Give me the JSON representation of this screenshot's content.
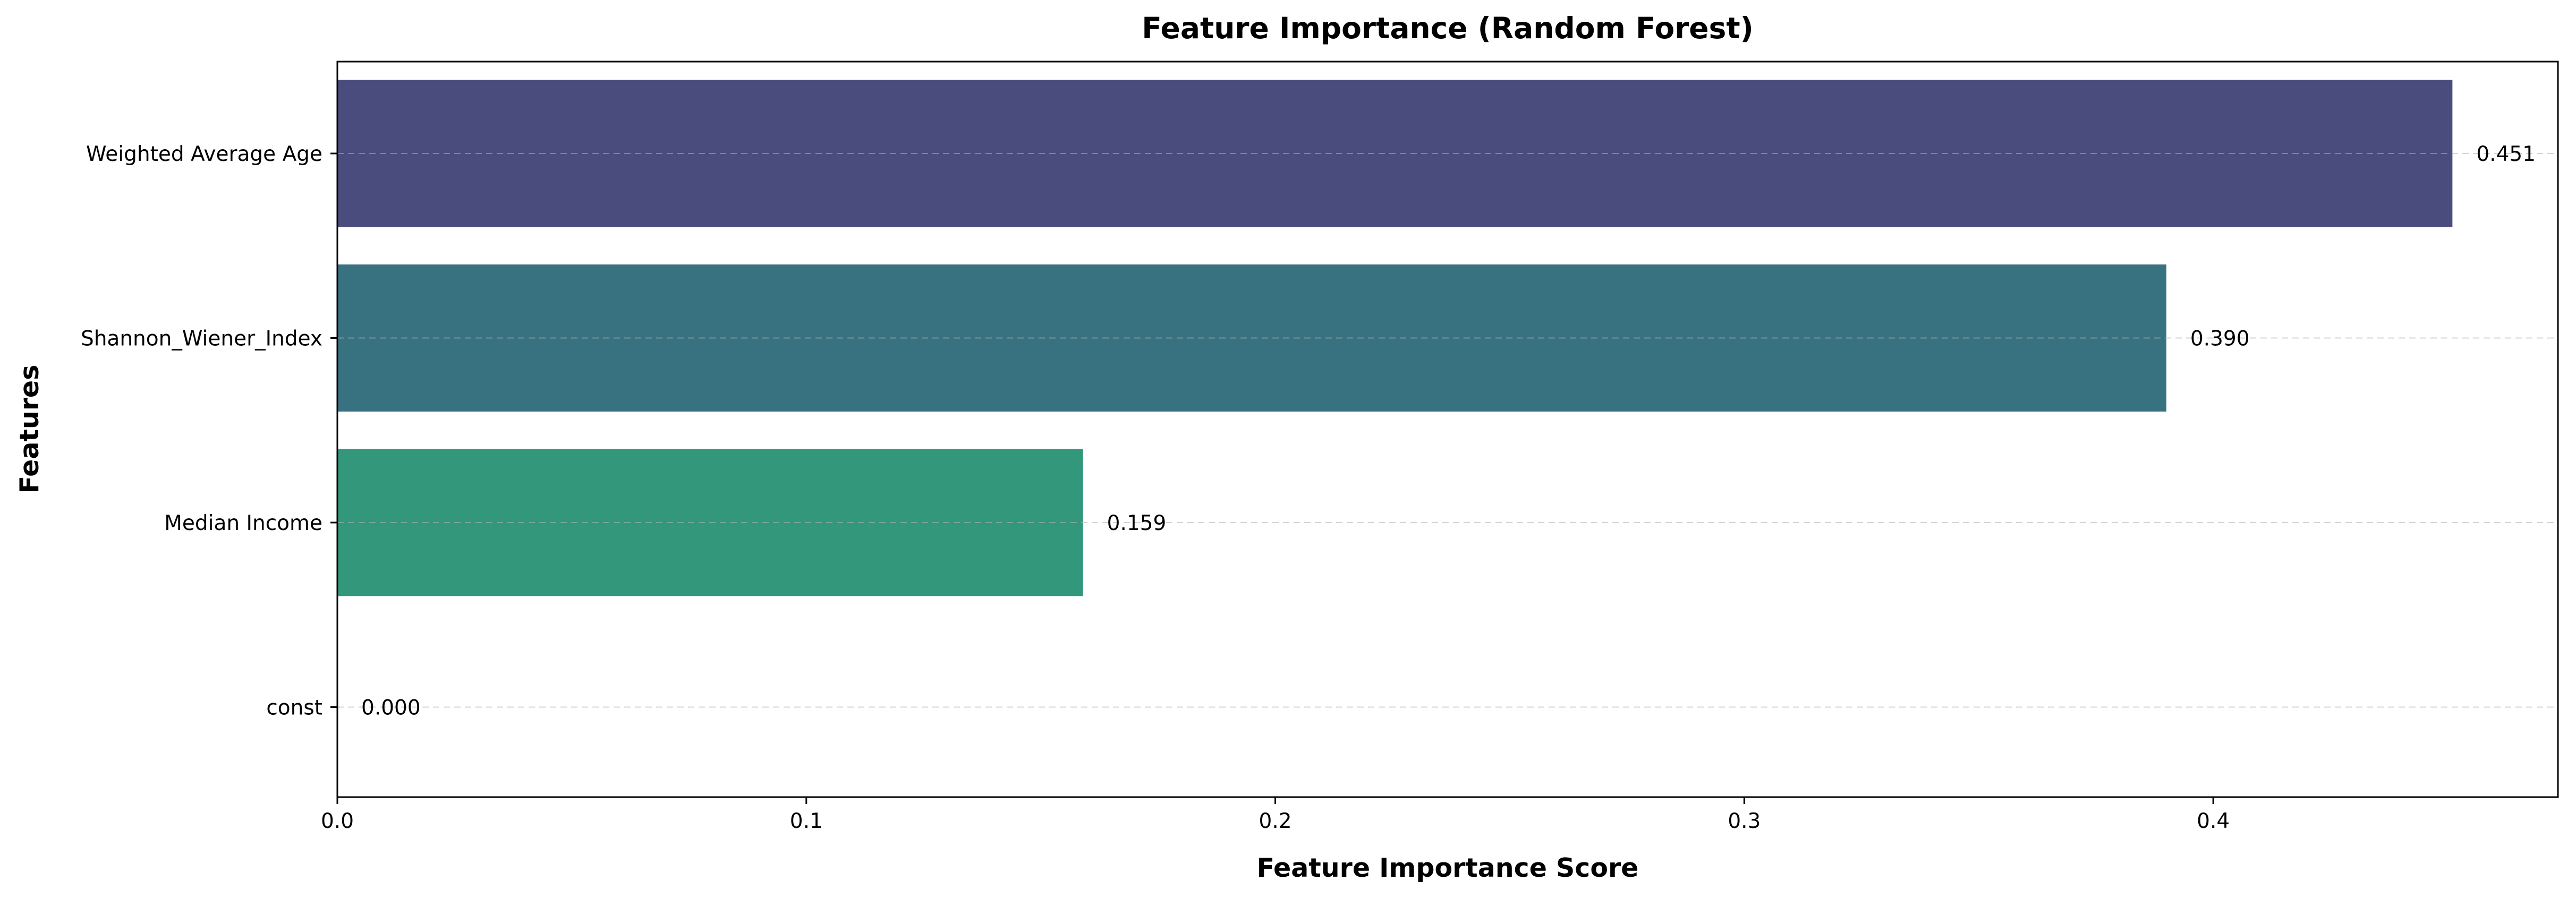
{
  "chart_data": {
    "type": "bar",
    "orientation": "horizontal",
    "title": "Feature Importance (Random Forest)",
    "xlabel": "Feature Importance Score",
    "ylabel": "Features",
    "categories": [
      "Weighted Average Age",
      "Shannon_Wiener_Index",
      "Median Income",
      "const"
    ],
    "values": [
      0.451,
      0.39,
      0.159,
      0.0
    ],
    "value_labels": [
      "0.451",
      "0.390",
      "0.159",
      "0.000"
    ],
    "colors": [
      "#4b4c7e",
      "#387280",
      "#33977c",
      "#67c96a"
    ],
    "xlim": [
      0,
      0.4735
    ],
    "xticks": [
      0.0,
      0.1,
      0.2,
      0.3,
      0.4
    ],
    "xtick_labels": [
      "0.0",
      "0.1",
      "0.2",
      "0.3",
      "0.4"
    ],
    "grid": "x-dashed-at-bars",
    "legend": "none"
  }
}
